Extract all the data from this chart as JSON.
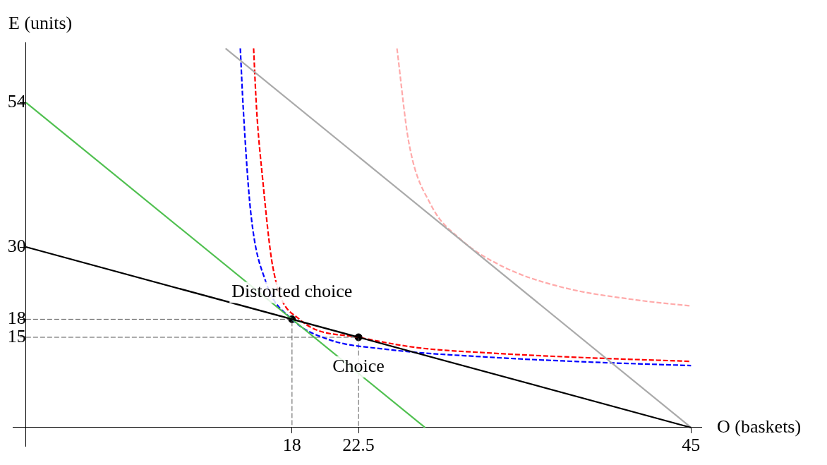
{
  "chart_data": {
    "type": "line",
    "xlabel": "O (baskets)",
    "ylabel": "E (units)",
    "xlim": [
      -0.9,
      45.7
    ],
    "ylim": [
      -3.1,
      64
    ],
    "xticks": [
      18,
      22.5,
      45
    ],
    "yticks": [
      15,
      18,
      30,
      54
    ],
    "grid": false,
    "legend": false,
    "annotations": [
      {
        "text": "Distorted choice",
        "x": 18,
        "y": 18
      },
      {
        "text": "Choice",
        "x": 22.5,
        "y": 15
      }
    ],
    "series": [
      {
        "color": "#000000",
        "line_style": "solid",
        "marker": "none",
        "x": [
          0,
          45
        ],
        "values": [
          30,
          0
        ]
      },
      {
        "color": "#50c050",
        "line_style": "solid",
        "marker": "none",
        "x": [
          0,
          27
        ],
        "values": [
          54,
          0
        ]
      },
      {
        "color": "#aaaaaa",
        "line_style": "solid",
        "marker": "none",
        "x": [
          13.5,
          45
        ],
        "values": [
          63,
          0
        ]
      },
      {
        "color": "#ff0000",
        "line_style": "dashed",
        "marker": "none",
        "x": [
          15.4,
          15.6,
          16,
          16.7,
          18.45,
          22.5,
          26.4,
          31.3,
          38,
          45
        ],
        "values": [
          63,
          53,
          41.6,
          26.7,
          18.1,
          15,
          13.3,
          12.4,
          11.6,
          11
        ]
      },
      {
        "color": "#0000ff",
        "line_style": "dashed",
        "marker": "none",
        "x": [
          14.5,
          14.7,
          15.2,
          16.2,
          18,
          20.4,
          24.4,
          31.3,
          38,
          45
        ],
        "values": [
          63,
          53,
          35.9,
          24.4,
          18,
          14.7,
          13,
          11.7,
          10.9,
          10.3
        ]
      },
      {
        "color": "#ffaaaa",
        "line_style": "dashed",
        "marker": "none",
        "x": [
          25.1,
          25.9,
          27.4,
          29.4,
          32.3,
          36.3,
          41.3,
          45
        ],
        "values": [
          63,
          47.4,
          37,
          31.3,
          26.7,
          23.3,
          21.2,
          20.2
        ]
      },
      {
        "color": "#555555",
        "line_style": "dashed",
        "marker": "none",
        "x": [
          0,
          18,
          18
        ],
        "values": [
          18,
          18,
          0
        ]
      },
      {
        "color": "#555555",
        "line_style": "dashed",
        "marker": "none",
        "x": [
          0,
          22.5,
          22.5
        ],
        "values": [
          15,
          15,
          0
        ]
      },
      {
        "type": "scatter",
        "color": "#000000",
        "marker": "circle",
        "x": [
          18,
          22.5
        ],
        "values": [
          18,
          15
        ]
      }
    ]
  }
}
